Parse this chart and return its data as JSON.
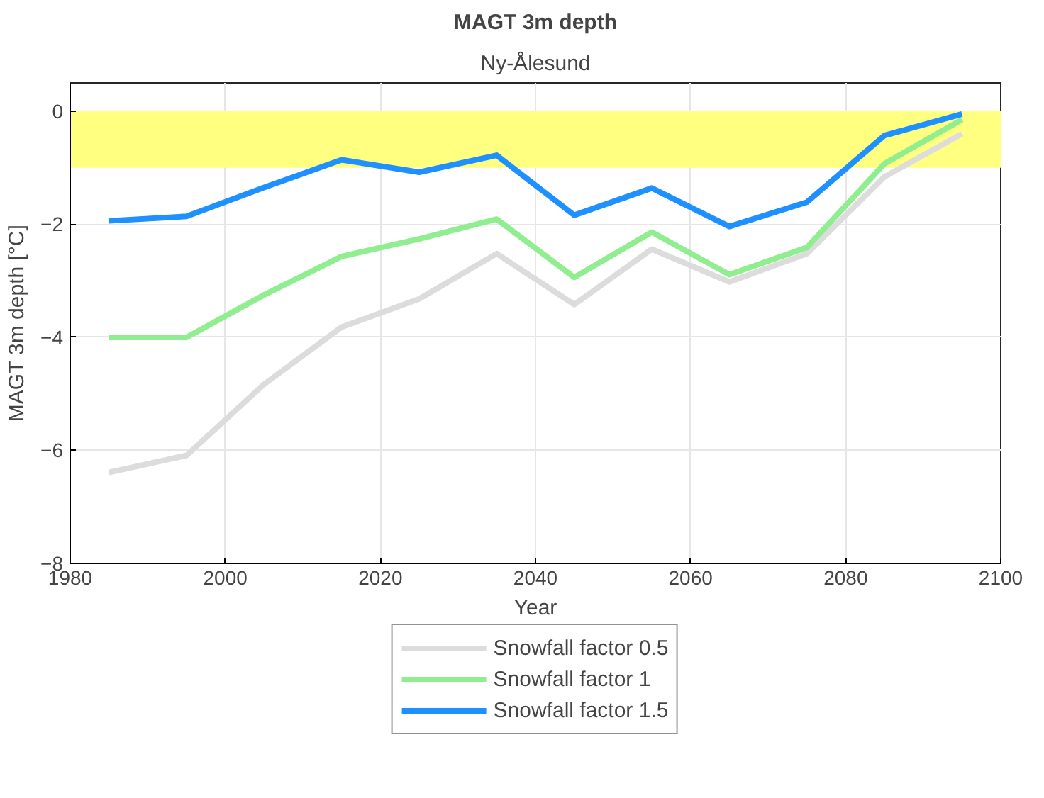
{
  "chart_data": {
    "type": "line",
    "title": "MAGT 3m depth",
    "subtitle": "Ny-Ålesund",
    "xlabel": "Year",
    "ylabel": "MAGT 3m depth [°C]",
    "x": [
      1985,
      1995,
      2005,
      2015,
      2025,
      2035,
      2045,
      2055,
      2065,
      2075,
      2085,
      2095
    ],
    "series": [
      {
        "name": "Snowfall factor 0.5",
        "color": "#dcdcdc",
        "values": [
          -6.39,
          -6.09,
          -4.83,
          -3.82,
          -3.32,
          -2.52,
          -3.42,
          -2.44,
          -3.02,
          -2.52,
          -1.16,
          -0.4
        ]
      },
      {
        "name": "Snowfall factor 1",
        "color": "#90ee90",
        "values": [
          -4.0,
          -4.0,
          -3.25,
          -2.57,
          -2.26,
          -1.91,
          -2.94,
          -2.14,
          -2.89,
          -2.41,
          -0.93,
          -0.15
        ]
      },
      {
        "name": "Snowfall factor 1.5",
        "color": "#1e90ff",
        "values": [
          -1.94,
          -1.86,
          -1.35,
          -0.86,
          -1.08,
          -0.78,
          -1.84,
          -1.36,
          -2.04,
          -1.61,
          -0.43,
          -0.05
        ]
      }
    ],
    "xlim": [
      1980,
      2100
    ],
    "xticks": [
      1980,
      2000,
      2020,
      2040,
      2060,
      2080,
      2100
    ],
    "ylim": [
      -8,
      0.5
    ],
    "yticks": [
      -8,
      -6,
      -4,
      -2,
      0
    ],
    "bands": [
      {
        "axis": "y",
        "from": -1,
        "to": 0,
        "color": "#ffff80"
      }
    ],
    "grid": true,
    "legend": "bottom",
    "line_style": "solid"
  }
}
